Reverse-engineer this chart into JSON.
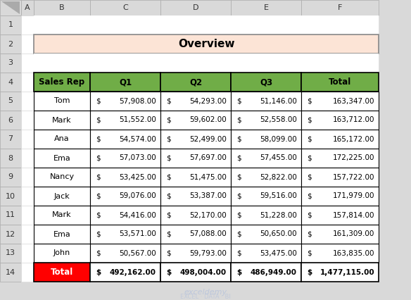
{
  "title": "Overview",
  "title_bg": "#FCE4D6",
  "header_bg": "#70AD47",
  "total_row_bg": "#FF0000",
  "total_row_text": "#FFFFFF",
  "data_bg": "#FFFFFF",
  "border_color": "#000000",
  "excel_header_bg": "#D9D9D9",
  "excel_header_text": "#000000",
  "col_letters": [
    "A",
    "B",
    "C",
    "D",
    "E",
    "F",
    ""
  ],
  "row_numbers": [
    "1",
    "2",
    "3",
    "4",
    "5",
    "6",
    "7",
    "8",
    "9",
    "10",
    "11",
    "12",
    "13",
    "14"
  ],
  "col_headers": [
    "Sales Rep",
    "Q1",
    "Q2",
    "Q3",
    "Total"
  ],
  "rows": [
    [
      "Tom",
      57908.0,
      54293.0,
      51146.0,
      163347.0
    ],
    [
      "Mark",
      51552.0,
      59602.0,
      52558.0,
      163712.0
    ],
    [
      "Ana",
      54574.0,
      52499.0,
      58099.0,
      165172.0
    ],
    [
      "Ema",
      57073.0,
      57697.0,
      57455.0,
      172225.0
    ],
    [
      "Nancy",
      53425.0,
      51475.0,
      52822.0,
      157722.0
    ],
    [
      "Jack",
      59076.0,
      53387.0,
      59516.0,
      171979.0
    ],
    [
      "Mark",
      54416.0,
      52170.0,
      51228.0,
      157814.0
    ],
    [
      "Ema",
      53571.0,
      57088.0,
      50650.0,
      161309.0
    ],
    [
      "John",
      50567.0,
      59793.0,
      53475.0,
      163835.0
    ]
  ],
  "total_row": [
    "Total",
    492162.0,
    498004.0,
    486949.0,
    1477115.0
  ],
  "fig_width": 5.84,
  "fig_height": 4.26
}
